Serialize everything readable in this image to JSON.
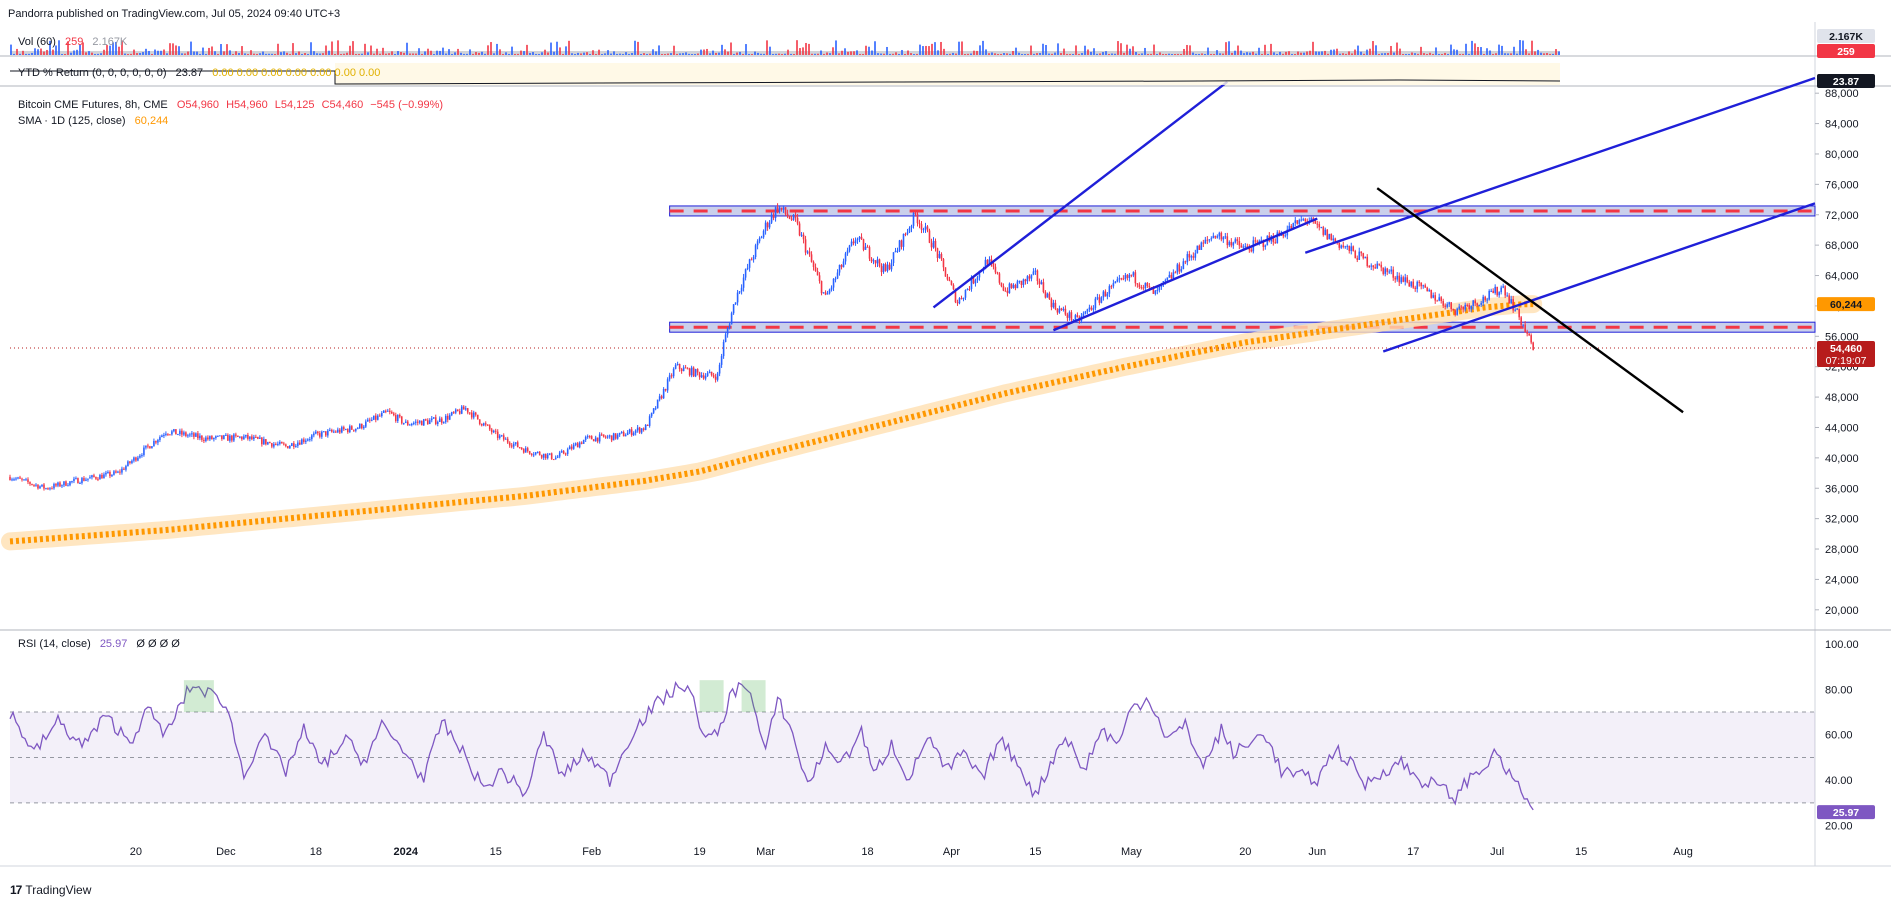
{
  "header": {
    "publisher_line": "Pandorra published on TradingView.com, Jul 05, 2024 09:40 UTC+3"
  },
  "footer": {
    "brand": "TradingView"
  },
  "colors": {
    "up": "#2962ff",
    "down": "#f23645",
    "sma": "#ff9800",
    "rsi": "#7e57c2",
    "trend": "#1f1fd8",
    "zone": "#9fa8da"
  },
  "chart_data": {
    "type": "line",
    "title": "Bitcoin CME Futures, 8h, CME",
    "legend": {
      "vol": {
        "name": "Vol (60)",
        "v1": "259",
        "v2": "2.167K"
      },
      "ytd": {
        "name": "YTD % Return (0, 0, 0, 0, 0, 0)",
        "v1": "23.87",
        "v2": "0.00  0.00  0.00  0.00  0.00  0.00  0.00"
      },
      "price": {
        "name": "Bitcoin CME Futures, 8h, CME",
        "open": "O54,960",
        "high": "H54,960",
        "low": "L54,125",
        "close": "C54,460",
        "change": "−545 (−0.99%)"
      },
      "sma": {
        "name": "SMA · 1D (125, close)",
        "value": "60,244"
      },
      "rsi": {
        "name": "RSI (14, close)",
        "value": "25.97",
        "extra": "Ø  Ø  Ø  Ø"
      }
    },
    "price_axis": {
      "ylim": [
        18000,
        90000
      ],
      "ticks": [
        "88,000",
        "84,000",
        "80,000",
        "76,000",
        "72,000",
        "68,000",
        "64,000",
        "60,000",
        "56,000",
        "52,000",
        "48,000",
        "44,000",
        "40,000",
        "36,000",
        "32,000",
        "28,000",
        "24,000",
        "20,000"
      ]
    },
    "rsi_axis": {
      "ylim": [
        15,
        103
      ],
      "ticks": [
        "100.00",
        "80.00",
        "60.00",
        "40.00",
        "20.00"
      ],
      "levels": [
        70,
        50,
        30
      ]
    },
    "x_ticks": [
      "20",
      "Dec",
      "18",
      "2024",
      "15",
      "Feb",
      "19",
      "Mar",
      "18",
      "Apr",
      "15",
      "May",
      "20",
      "Jun",
      "17",
      "Jul",
      "15",
      "Aug"
    ],
    "x_tick_day": [
      -45,
      -30,
      -15,
      0,
      15,
      31,
      49,
      60,
      77,
      91,
      105,
      121,
      140,
      152,
      168,
      182,
      196,
      213
    ],
    "x_range": [
      -66,
      235
    ],
    "price_series": {
      "day": [
        -66,
        -60,
        -55,
        -48,
        -40,
        -33,
        -27,
        -20,
        -15,
        -8,
        -3,
        0,
        6,
        10,
        15,
        20,
        25,
        30,
        35,
        40,
        45,
        49,
        52,
        53,
        55,
        57,
        60,
        62,
        65,
        70,
        75,
        80,
        85,
        88,
        92,
        97,
        100,
        105,
        108,
        112,
        117,
        121,
        125,
        130,
        135,
        140,
        145,
        150,
        155,
        160,
        165,
        170,
        175,
        180,
        183,
        186,
        188
      ],
      "price": [
        37500,
        36000,
        37000,
        38000,
        43500,
        42500,
        42700,
        41500,
        43000,
        44000,
        46000,
        44500,
        45000,
        46500,
        43000,
        41000,
        40000,
        42500,
        42800,
        44000,
        52000,
        51000,
        50800,
        55000,
        61000,
        65000,
        70500,
        73000,
        71000,
        61000,
        69000,
        64500,
        72000,
        68000,
        60500,
        66000,
        62000,
        64000,
        60000,
        58000,
        62000,
        64000,
        61500,
        66000,
        69500,
        67500,
        69000,
        71500,
        68500,
        66000,
        64000,
        62000,
        59500,
        61000,
        62500,
        58000,
        54460
      ]
    },
    "sma_series": {
      "day": [
        -66,
        -40,
        -20,
        0,
        20,
        40,
        49,
        60,
        80,
        100,
        120,
        140,
        160,
        175,
        180,
        186,
        188
      ],
      "value": [
        29000,
        30500,
        32000,
        33500,
        35000,
        37000,
        38200,
        40500,
        44500,
        48500,
        52000,
        55200,
        57500,
        59200,
        59800,
        60200,
        60244
      ]
    },
    "rsi_series": {
      "day": [
        -66,
        -62,
        -58,
        -54,
        -50,
        -46,
        -43,
        -40,
        -36,
        -34,
        -30,
        -27,
        -24,
        -20,
        -17,
        -14,
        -10,
        -7,
        -4,
        0,
        3,
        6,
        10,
        13,
        16,
        20,
        23,
        26,
        30,
        34,
        38,
        42,
        45,
        47,
        50,
        52,
        54,
        56,
        57,
        60,
        62,
        64,
        67,
        70,
        73,
        76,
        78,
        81,
        84,
        87,
        90,
        93,
        96,
        99,
        102,
        105,
        108,
        110,
        113,
        116,
        119,
        121,
        124,
        127,
        130,
        133,
        136,
        138,
        141,
        143,
        146,
        149,
        152,
        155,
        158,
        160,
        163,
        166,
        169,
        172,
        175,
        177,
        179,
        182,
        184,
        186,
        188
      ],
      "value": [
        70,
        52,
        66,
        55,
        68,
        57,
        71,
        60,
        81,
        80,
        74,
        42,
        60,
        44,
        62,
        46,
        58,
        48,
        64,
        52,
        40,
        66,
        50,
        36,
        44,
        34,
        60,
        42,
        52,
        40,
        62,
        74,
        80,
        82,
        58,
        60,
        76,
        83,
        82,
        52,
        76,
        64,
        38,
        54,
        48,
        62,
        42,
        56,
        40,
        60,
        44,
        52,
        40,
        58,
        48,
        33,
        50,
        60,
        44,
        62,
        56,
        72,
        76,
        58,
        64,
        46,
        62,
        52,
        56,
        62,
        44,
        42,
        40,
        54,
        46,
        38,
        44,
        48,
        40,
        38,
        32,
        40,
        44,
        52,
        42,
        36,
        26
      ]
    },
    "levels": [
      {
        "name": "resistance-zone",
        "price": 72500,
        "day_from": 44,
        "day_to": 235
      },
      {
        "name": "support-zone",
        "price": 57200,
        "day_from": 44,
        "day_to": 235
      }
    ],
    "trendlines": [
      {
        "name": "upper-channel-top",
        "color": "#1f1fd8",
        "points": [
          [
            88,
            59800
          ],
          [
            137,
            89500
          ]
        ]
      },
      {
        "name": "upper-channel-bottom",
        "color": "#1f1fd8",
        "points": [
          [
            108,
            56800
          ],
          [
            152,
            71500
          ]
        ]
      },
      {
        "name": "outer-channel-top",
        "color": "#1f1fd8",
        "points": [
          [
            150,
            67000
          ],
          [
            235,
            90000
          ]
        ]
      },
      {
        "name": "outer-channel-bottom",
        "color": "#1f1fd8",
        "points": [
          [
            163,
            54000
          ],
          [
            235,
            73500
          ]
        ]
      },
      {
        "name": "descending-trendline",
        "color": "#000000",
        "points": [
          [
            162,
            75500
          ],
          [
            213,
            46000
          ]
        ]
      }
    ],
    "price_labels": [
      {
        "name": "sma-label",
        "text": "60,244",
        "price": 60244,
        "bg": "#ff9800",
        "fg": "#131722"
      },
      {
        "name": "last-price-label",
        "text": "54,460",
        "sub": "07:19:07",
        "price": 54460,
        "bg": "#b71c1c",
        "fg": "#ffffff"
      }
    ],
    "indicator_labels": [
      {
        "name": "vol-label-1",
        "text": "2.167K",
        "bg": "#e0e3eb",
        "fg": "#131722"
      },
      {
        "name": "vol-label-2",
        "text": "259",
        "bg": "#f23645",
        "fg": "#ffffff"
      },
      {
        "name": "ytd-label",
        "text": "23.87",
        "bg": "#131722",
        "fg": "#ffffff"
      },
      {
        "name": "rsi-label",
        "text": "25.97",
        "bg": "#7e57c2",
        "fg": "#ffffff"
      }
    ]
  }
}
